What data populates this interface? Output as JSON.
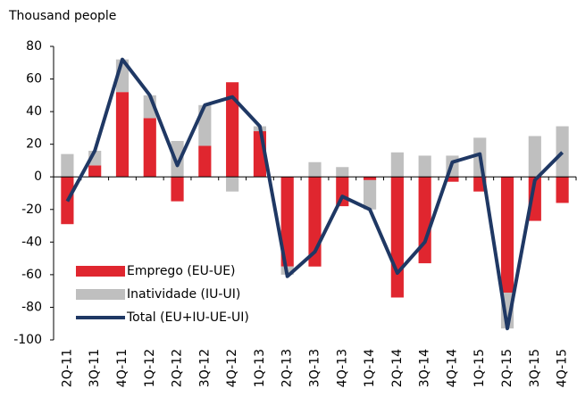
{
  "chart_data": {
    "type": "bar",
    "y_label": "Thousand people",
    "categories": [
      "2Q-11",
      "3Q-11",
      "4Q-11",
      "1Q-12",
      "2Q-12",
      "3Q-12",
      "4Q-12",
      "1Q-13",
      "2Q-13",
      "3Q-13",
      "4Q-13",
      "1Q-14",
      "2Q-14",
      "3Q-14",
      "4Q-14",
      "1Q-15",
      "2Q-15",
      "3Q-15",
      "4Q-15"
    ],
    "series": [
      {
        "name": "Emprego (EU-UE)",
        "type": "bar",
        "color": "#e0262f",
        "values": [
          -29,
          7,
          52,
          36,
          -15,
          19,
          58,
          28,
          -55,
          -55,
          -18,
          -2,
          -74,
          -53,
          -3,
          -9,
          -71,
          -27,
          -16
        ]
      },
      {
        "name": "Inatividade (IU-UI)",
        "type": "bar",
        "color": "#bfbfbf",
        "values": [
          14,
          9,
          20,
          14,
          22,
          25,
          -9,
          3,
          -5,
          9,
          6,
          -18,
          15,
          13,
          13,
          24,
          -22,
          25,
          31
        ]
      },
      {
        "name": "Total (EU+IU-UE-UI)",
        "type": "line",
        "color": "#1f3864",
        "values": [
          -15,
          16,
          72,
          50,
          7,
          44,
          49,
          31,
          -61,
          -46,
          -12,
          -20,
          -59,
          -40,
          9,
          14,
          -93,
          -2,
          15
        ]
      }
    ],
    "stacked": true,
    "ylim": [
      -100,
      80
    ],
    "yticks": [
      -100,
      -80,
      -60,
      -40,
      -20,
      0,
      20,
      40,
      60,
      80
    ],
    "grid": false,
    "legend": "lower-left"
  }
}
